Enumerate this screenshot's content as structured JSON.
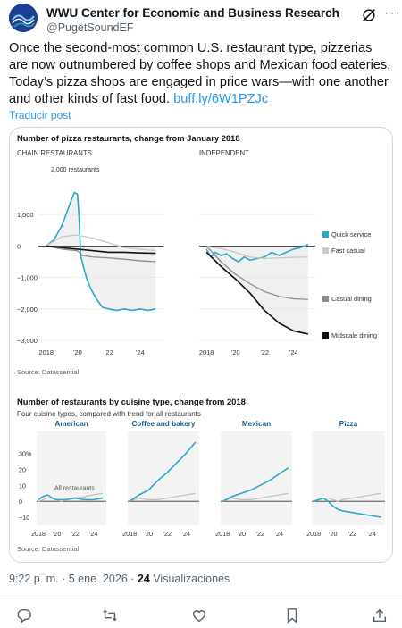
{
  "post": {
    "author_name": "WWU Center for Economic and Business Research",
    "author_handle": "@PugetSoundEF",
    "text": "Once the second-most common U.S. restaurant type, pizzerias are now outnumbered by coffee shops and Mexican food eateries. Today’s pizza shops are engaged in price wars—with one another and other kinds of fast food. ",
    "link_text": "buff.ly/6W1PZJc",
    "translate_label": "Traducir post",
    "time": "9:22 p. m.",
    "dot": "·",
    "date": "5 ene. 2026",
    "views_count": "24",
    "views_label": "Visualizaciones"
  },
  "icons": {
    "grok": "grok-icon",
    "more": "more-icon",
    "reply": "reply-icon",
    "retweet": "retweet-icon",
    "like": "like-icon",
    "bookmark": "bookmark-icon",
    "share": "share-icon"
  },
  "colors": {
    "quick_service": "#2aa8c4",
    "fast_casual": "#c8c8c8",
    "casual_dining": "#8c8c8c",
    "midscale_dining": "#111111",
    "cuisine_line": "#2aa8c4",
    "all_restaurants": "#c0c0c0",
    "fill": "#e6e6e6",
    "link": "#1d9bf0"
  },
  "chart_data": [
    {
      "type": "line",
      "title": "Number of pizza restaurants, change from January 2018",
      "panel_label": "CHAIN RESTAURANTS",
      "y_unit_label": "2,000 restaurants",
      "y_ticks": [
        "1,000",
        "0",
        "−1,000",
        "−2,000",
        "−3,000"
      ],
      "x_ticks": [
        "2018",
        "’20",
        "’22",
        "’24"
      ],
      "ylim": [
        -3000,
        2000
      ],
      "xlim": [
        2017.5,
        2025.5
      ],
      "series": [
        {
          "color_key": "quick_service",
          "x": [
            2018,
            2018.5,
            2019,
            2019.3,
            2019.6,
            2019.8,
            2020.0,
            2020.1,
            2020.2,
            2020.4,
            2020.6,
            2020.8,
            2021,
            2021.3,
            2021.6,
            2022,
            2022.5,
            2023,
            2023.5,
            2024,
            2024.5,
            2025
          ],
          "y": [
            0,
            200,
            650,
            1050,
            1450,
            1700,
            1650,
            900,
            -300,
            -700,
            -1050,
            -1300,
            -1500,
            -1750,
            -1950,
            -2000,
            -2050,
            -2000,
            -2050,
            -2000,
            -2050,
            -2000
          ]
        },
        {
          "color_key": "casual_dining",
          "x": [
            2018,
            2019,
            2020,
            2020.3,
            2021,
            2022,
            2023,
            2024,
            2025
          ],
          "y": [
            0,
            -100,
            -150,
            -300,
            -350,
            -380,
            -420,
            -470,
            -500
          ]
        },
        {
          "color_key": "fast_casual",
          "x": [
            2018,
            2019,
            2020,
            2021,
            2022,
            2023,
            2024,
            2025
          ],
          "y": [
            0,
            300,
            350,
            250,
            100,
            -50,
            -100,
            -150
          ]
        },
        {
          "color_key": "midscale_dining",
          "x": [
            2018,
            2019,
            2020,
            2021,
            2022,
            2023,
            2024,
            2025
          ],
          "y": [
            0,
            -50,
            -100,
            -150,
            -200,
            -200,
            -220,
            -230
          ]
        }
      ]
    },
    {
      "type": "line",
      "panel_label": "INDEPENDENT",
      "x_ticks": [
        "2018",
        "’20",
        "’22",
        "’24"
      ],
      "ylim": [
        -3000,
        2000
      ],
      "xlim": [
        2017.5,
        2025.5
      ],
      "legend": [
        "Quick service",
        "Fast casual",
        "Casual dining",
        "Midscale dining"
      ],
      "series": [
        {
          "name": "Quick service",
          "color_key": "quick_service",
          "x": [
            2018,
            2018.3,
            2018.6,
            2019,
            2019.4,
            2019.8,
            2020.2,
            2020.6,
            2021,
            2021.5,
            2022,
            2022.5,
            2023,
            2023.5,
            2024,
            2024.5,
            2025
          ],
          "y": [
            -100,
            -350,
            -200,
            -300,
            -250,
            -400,
            -500,
            -350,
            -450,
            -400,
            -350,
            -200,
            -300,
            -200,
            -100,
            -50,
            50
          ]
        },
        {
          "name": "Fast casual",
          "color_key": "fast_casual",
          "x": [
            2018,
            2019,
            2020,
            2021,
            2022,
            2023,
            2024,
            2025
          ],
          "y": [
            0,
            -80,
            -200,
            -350,
            -400,
            -380,
            -360,
            -350
          ]
        },
        {
          "name": "Casual dining",
          "color_key": "casual_dining",
          "x": [
            2018,
            2019,
            2020,
            2021,
            2022,
            2023,
            2024,
            2025
          ],
          "y": [
            0,
            -500,
            -900,
            -1200,
            -1450,
            -1600,
            -1680,
            -1700
          ]
        },
        {
          "name": "Midscale dining",
          "color_key": "midscale_dining",
          "x": [
            2018,
            2019,
            2020,
            2021,
            2022,
            2023,
            2024,
            2025
          ],
          "y": [
            -200,
            -650,
            -1050,
            -1500,
            -2050,
            -2450,
            -2700,
            -2800
          ]
        }
      ]
    },
    {
      "type": "line",
      "title": "Number of restaurants by cuisine type, change from 2018",
      "subtitle": "Four cuisine types, compared with trend for all restaurants",
      "y_ticks": [
        "30%",
        "20",
        "10",
        "0",
        "−10"
      ],
      "x_ticks": [
        "2018",
        "’20",
        "’22",
        "’24"
      ],
      "ylim": [
        -15,
        37
      ],
      "xlim": [
        2017.8,
        2025.4
      ],
      "reference_label": "All restaurants",
      "panels": [
        {
          "name": "American",
          "x": [
            2018,
            2018.5,
            2019,
            2019.5,
            2020,
            2020.5,
            2021,
            2022,
            2023,
            2024,
            2025
          ],
          "y": [
            1,
            3,
            4,
            2,
            1,
            1,
            1,
            2,
            1,
            1,
            2
          ],
          "ref": [
            0,
            1,
            2,
            2,
            1,
            0,
            1,
            2,
            3,
            4,
            5
          ]
        },
        {
          "name": "Coffee and bakery",
          "x": [
            2018,
            2019,
            2020,
            2021,
            2022,
            2023,
            2024,
            2025
          ],
          "y": [
            0,
            4,
            7,
            13,
            18,
            24,
            30,
            37
          ],
          "ref": [
            0,
            2,
            1,
            1,
            2,
            3,
            4,
            5
          ]
        },
        {
          "name": "Mexican",
          "x": [
            2018,
            2019,
            2020,
            2021,
            2022,
            2023,
            2024,
            2025
          ],
          "y": [
            0,
            3,
            5,
            7,
            10,
            13,
            17,
            21
          ],
          "ref": [
            0,
            2,
            1,
            1,
            2,
            3,
            4,
            5
          ]
        },
        {
          "name": "Pizza",
          "x": [
            2018,
            2018.5,
            2019,
            2019.5,
            2020,
            2020.5,
            2021,
            2022,
            2023,
            2024,
            2025
          ],
          "y": [
            0,
            1,
            2,
            0,
            -3,
            -5,
            -6,
            -7,
            -8,
            -9,
            -10
          ],
          "ref": [
            0,
            1,
            2,
            2,
            1,
            0,
            1,
            2,
            3,
            4,
            5
          ]
        }
      ]
    }
  ],
  "sources": {
    "top": "Source: Datassential",
    "bottom": "Source: Datassential"
  }
}
